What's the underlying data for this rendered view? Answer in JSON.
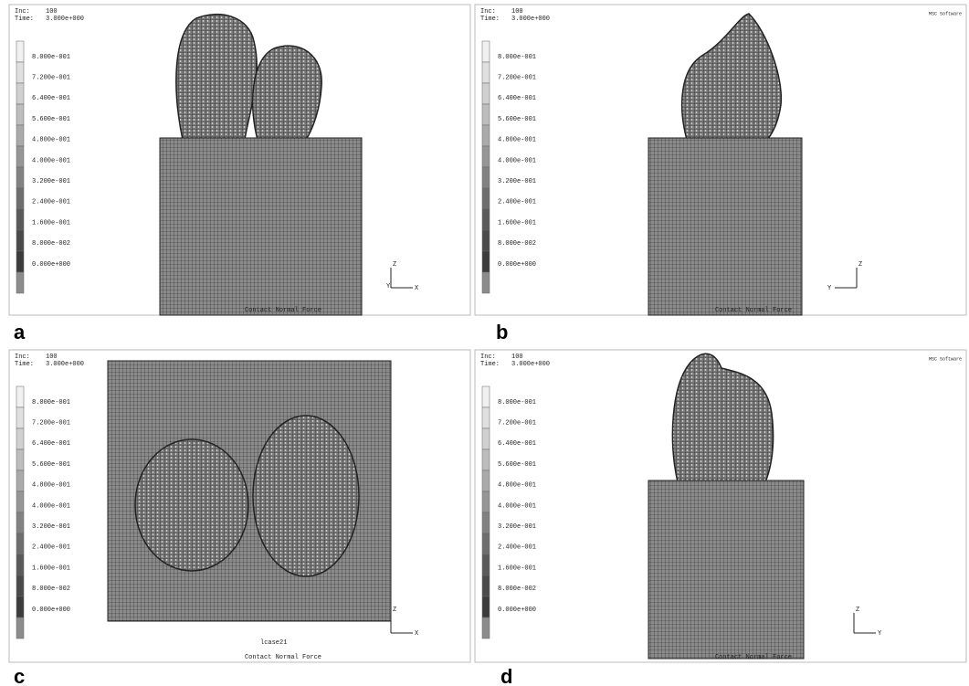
{
  "panels": [
    {
      "letter": "a",
      "inc_label": "Inc:",
      "inc": "100",
      "time_label": "Time:",
      "time": "3.000e+000",
      "legend": [
        "8.000e-001",
        "7.200e-001",
        "6.400e-001",
        "5.600e-001",
        "4.800e-001",
        "4.000e-001",
        "3.200e-001",
        "2.400e-001",
        "1.600e-001",
        "8.000e-002",
        "0.000e+000"
      ],
      "caption": "Contact Normal Force",
      "axes": [
        "Z",
        "Y",
        "X"
      ]
    },
    {
      "letter": "b",
      "inc_label": "Inc:",
      "inc": "100",
      "time_label": "Time:",
      "time": "3.000e+000",
      "legend": [
        "8.000e-001",
        "7.200e-001",
        "6.400e-001",
        "5.600e-001",
        "4.800e-001",
        "4.000e-001",
        "3.200e-001",
        "2.400e-001",
        "1.600e-001",
        "8.000e-002",
        "0.000e+000"
      ],
      "caption": "Contact Normal Force",
      "axes": [
        "Z",
        "Y"
      ],
      "logo": "MSC Software"
    },
    {
      "letter": "c",
      "inc_label": "Inc:",
      "inc": "100",
      "time_label": "Time:",
      "time": "3.000e+000",
      "legend": [
        "8.000e-001",
        "7.200e-001",
        "6.400e-001",
        "5.600e-001",
        "4.800e-001",
        "4.000e-001",
        "3.200e-001",
        "2.400e-001",
        "1.600e-001",
        "8.000e-002",
        "0.000e+000"
      ],
      "job": "lcase21",
      "caption": "Contact Normal Force",
      "axes": [
        "Z",
        "X"
      ]
    },
    {
      "letter": "d",
      "inc_label": "Inc:",
      "inc": "100",
      "time_label": "Time:",
      "time": "3.000e+000",
      "legend": [
        "8.000e-001",
        "7.200e-001",
        "6.400e-001",
        "5.600e-001",
        "4.800e-001",
        "4.000e-001",
        "3.200e-001",
        "2.400e-001",
        "1.600e-001",
        "8.000e-002",
        "0.000e+000"
      ],
      "caption": "Contact Normal Force",
      "axes": [
        "Z",
        "Y"
      ],
      "logo": "MSC Software"
    }
  ]
}
